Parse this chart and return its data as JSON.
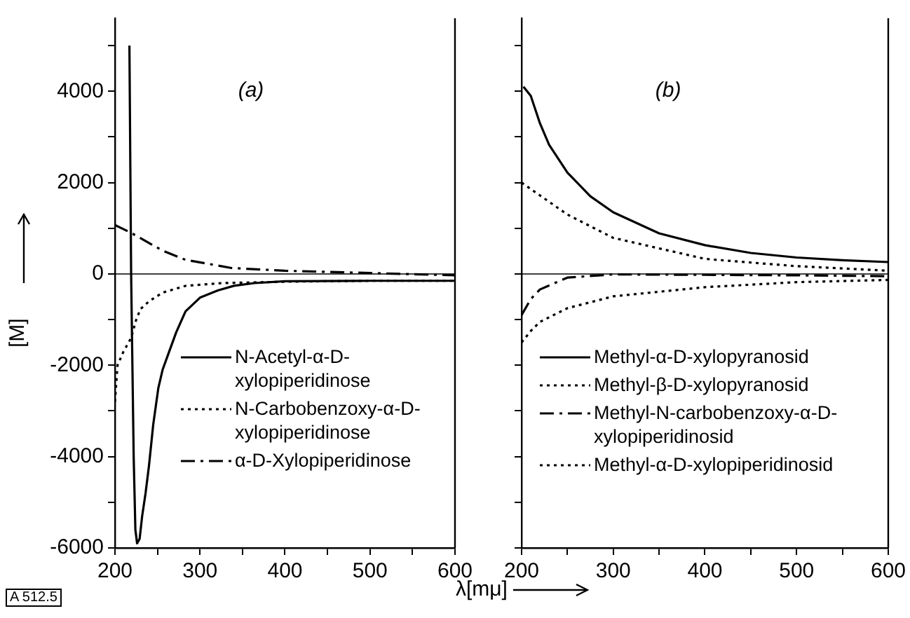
{
  "chart_data": [
    {
      "type": "line",
      "title": "(a)",
      "ylabel": "[M]",
      "annotations": [
        "A 512.5"
      ],
      "xlim": [
        200,
        600
      ],
      "xticks": [
        200,
        {
          "value": 250,
          "label": null
        },
        300,
        {
          "value": 350,
          "label": null
        },
        400,
        {
          "value": 450,
          "label": null
        },
        500,
        {
          "value": 550,
          "label": null
        },
        600
      ],
      "ylim": [
        -6000,
        5600
      ],
      "yticks": [
        -6000,
        {
          "value": -5000,
          "label": null
        },
        -4000,
        {
          "value": -3000,
          "label": null
        },
        -2000,
        {
          "value": -1000,
          "label": null
        },
        0,
        {
          "value": 1000,
          "label": null
        },
        2000,
        {
          "value": 3000,
          "label": null
        },
        4000,
        {
          "value": 5000,
          "label": null
        }
      ],
      "grid": false,
      "legend": "bottom right",
      "marker": "none",
      "ref_lines": [
        {
          "axis": "y",
          "value": 0
        }
      ],
      "series": [
        {
          "name": "N-Acetyl-α-D-xylopiperidinose",
          "color": "#000000",
          "line_style": "solid",
          "x": [
            217,
            219,
            222,
            224,
            226,
            229,
            232,
            236,
            240,
            245,
            251,
            256,
            262,
            272,
            283,
            300,
            321,
            340,
            364,
            400,
            500,
            600
          ],
          "values": [
            5000,
            0,
            -4000,
            -5600,
            -5900,
            -5800,
            -5300,
            -4800,
            -4200,
            -3300,
            -2500,
            -2100,
            -1790,
            -1280,
            -820,
            -520,
            -360,
            -260,
            -200,
            -160,
            -150,
            -150
          ]
        },
        {
          "name": "N-Carbobenzoxy-α-D-xylopiperidinose",
          "color": "#000000",
          "line_style": "dotted",
          "x": [
            200,
            203,
            210,
            219,
            225,
            230,
            240,
            256,
            283,
            326,
            400,
            500,
            600
          ],
          "values": [
            -2800,
            -2000,
            -1700,
            -1400,
            -1000,
            -770,
            -600,
            -410,
            -260,
            -200,
            -170,
            -150,
            -150
          ]
        },
        {
          "name": "α-D-Xylopiperidinose",
          "color": "#000000",
          "line_style": "dashed",
          "x": [
            200,
            219,
            256,
            283,
            337,
            400,
            500,
            600
          ],
          "values": [
            1070,
            900,
            510,
            310,
            130,
            70,
            20,
            -30
          ]
        }
      ]
    },
    {
      "type": "line",
      "title": "(b)",
      "xlabel": "λ[mμ]",
      "xlim": [
        200,
        600
      ],
      "xticks": [
        200,
        {
          "value": 250,
          "label": null
        },
        300,
        {
          "value": 350,
          "label": null
        },
        400,
        {
          "value": 450,
          "label": null
        },
        500,
        {
          "value": 550,
          "label": null
        },
        600
      ],
      "ylim": [
        -6000,
        5600
      ],
      "yticks": [
        {
          "value": -6000,
          "label": null
        },
        {
          "value": -5000,
          "label": null
        },
        {
          "value": -4000,
          "label": null
        },
        {
          "value": -3000,
          "label": null
        },
        {
          "value": -2000,
          "label": null
        },
        {
          "value": -1000,
          "label": null
        },
        {
          "value": 0,
          "label": null
        },
        {
          "value": 1000,
          "label": null
        },
        {
          "value": 2000,
          "label": null
        },
        {
          "value": 3000,
          "label": null
        },
        {
          "value": 4000,
          "label": null
        },
        {
          "value": 5000,
          "label": null
        }
      ],
      "tick_labels": "x",
      "grid": false,
      "legend": "bottom right",
      "marker": "none",
      "ref_lines": [
        {
          "axis": "y",
          "value": 0
        }
      ],
      "series": [
        {
          "name": "Methyl-α-D-xylopyranosid",
          "color": "#000000",
          "line_style": "solid",
          "x": [
            202,
            210,
            220,
            230,
            250,
            275,
            300,
            350,
            400,
            450,
            500,
            550,
            600
          ],
          "values": [
            4100,
            3900,
            3300,
            2830,
            2220,
            1700,
            1350,
            890,
            630,
            460,
            360,
            300,
            260
          ]
        },
        {
          "name": "Methyl-β-D-xylopyranosid",
          "color": "#000000",
          "line_style": "dotted",
          "x": [
            200,
            210,
            220,
            250,
            300,
            400,
            500,
            600
          ],
          "values": [
            -1500,
            -1250,
            -1050,
            -750,
            -490,
            -290,
            -180,
            -130
          ]
        },
        {
          "name": "Methyl-N-carbobenzoxy-α-D-xylopiperidinosid",
          "color": "#000000",
          "line_style": "dashed",
          "x": [
            200,
            210,
            220,
            250,
            300,
            400,
            500,
            600
          ],
          "values": [
            -900,
            -550,
            -340,
            -80,
            -10,
            -20,
            -30,
            -50
          ]
        },
        {
          "name": "Methyl-α-D-xylopiperidinosid",
          "color": "#000000",
          "line_style": "dotted",
          "x": [
            200,
            250,
            300,
            400,
            500,
            600
          ],
          "values": [
            2000,
            1300,
            790,
            330,
            170,
            70
          ]
        }
      ]
    }
  ]
}
